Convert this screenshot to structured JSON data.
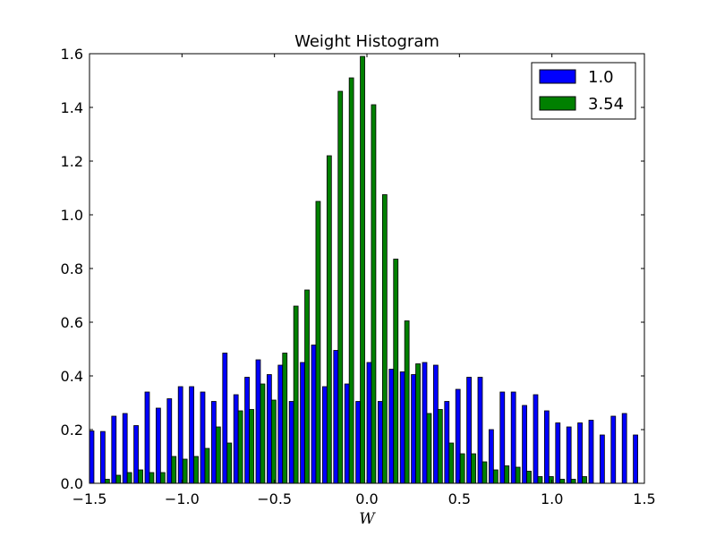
{
  "chart_data": {
    "type": "bar",
    "title": "Weight Histogram",
    "xlabel": "W",
    "ylabel": "",
    "xlim": [
      -1.5,
      1.5
    ],
    "ylim": [
      0,
      1.6
    ],
    "grid": false,
    "legend_position": "top-right",
    "bin_width": 0.06,
    "bin_starts": [
      -1.5,
      -1.44,
      -1.38,
      -1.32,
      -1.26,
      -1.2,
      -1.14,
      -1.08,
      -1.02,
      -0.96,
      -0.9,
      -0.84,
      -0.78,
      -0.72,
      -0.66,
      -0.6,
      -0.54,
      -0.48,
      -0.42,
      -0.36,
      -0.3,
      -0.24,
      -0.18,
      -0.12,
      -0.06,
      0.0,
      0.06,
      0.12,
      0.18,
      0.24,
      0.3,
      0.36,
      0.42,
      0.48,
      0.54,
      0.6,
      0.66,
      0.72,
      0.78,
      0.84,
      0.9,
      0.96,
      1.02,
      1.08,
      1.14,
      1.2,
      1.26,
      1.32,
      1.38,
      1.44
    ],
    "x_ticks": [
      "-1.5",
      "-1.0",
      "-0.5",
      "0.0",
      "0.5",
      "1.0",
      "1.5"
    ],
    "y_ticks": [
      "0.0",
      "0.2",
      "0.4",
      "0.6",
      "0.8",
      "1.0",
      "1.2",
      "1.4",
      "1.6"
    ],
    "series": [
      {
        "name": "1.0",
        "color": "#0000ff",
        "values": [
          0.195,
          0.193,
          0.25,
          0.26,
          0.215,
          0.34,
          0.28,
          0.315,
          0.36,
          0.36,
          0.34,
          0.305,
          0.485,
          0.33,
          0.395,
          0.46,
          0.405,
          0.44,
          0.305,
          0.45,
          0.515,
          0.36,
          0.495,
          0.37,
          0.305,
          0.45,
          0.305,
          0.425,
          0.415,
          0.405,
          0.45,
          0.44,
          0.305,
          0.35,
          0.395,
          0.395,
          0.2,
          0.34,
          0.34,
          0.29,
          0.33,
          0.27,
          0.225,
          0.21,
          0.225,
          0.235,
          0.18,
          0.25,
          0.26,
          0.18
        ]
      },
      {
        "name": "3.54",
        "color": "#008000",
        "values": [
          0.0,
          0.015,
          0.03,
          0.04,
          0.05,
          0.04,
          0.04,
          0.1,
          0.09,
          0.1,
          0.13,
          0.21,
          0.15,
          0.27,
          0.275,
          0.37,
          0.31,
          0.485,
          0.66,
          0.72,
          1.05,
          1.22,
          1.46,
          1.51,
          1.59,
          1.41,
          1.075,
          0.835,
          0.605,
          0.445,
          0.26,
          0.275,
          0.15,
          0.11,
          0.11,
          0.08,
          0.05,
          0.065,
          0.06,
          0.045,
          0.025,
          0.025,
          0.015,
          0.015,
          0.025,
          0.0,
          0.0,
          0.0,
          0.0,
          0.0
        ]
      }
    ]
  }
}
